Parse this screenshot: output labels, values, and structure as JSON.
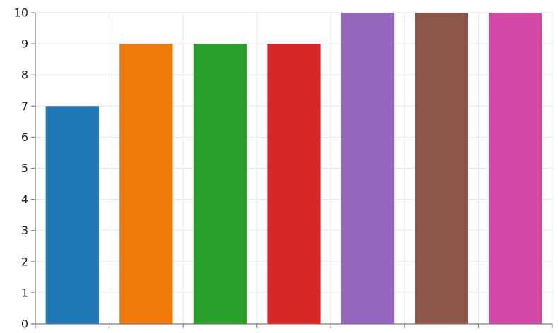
{
  "chart_data": {
    "type": "bar",
    "categories": [
      "",
      "",
      "",
      "",
      "",
      "",
      ""
    ],
    "values": [
      7,
      9,
      9,
      9,
      10,
      10,
      10
    ],
    "title": "",
    "xlabel": "",
    "ylabel": "",
    "ylim": [
      0,
      10
    ],
    "yticks": [
      0,
      1,
      2,
      3,
      4,
      5,
      6,
      7,
      8,
      9,
      10
    ],
    "ytick_labels": [
      "0",
      "1",
      "2",
      "3",
      "4",
      "5",
      "6",
      "7",
      "8",
      "9",
      "10"
    ],
    "grid": true,
    "legend": "none",
    "colors": [
      "#1f77b4",
      "#ef7a0a",
      "#2ca02c",
      "#d62728",
      "#9467bd",
      "#8c564b",
      "#d24aa6"
    ],
    "axis_color": "#7a7a7a",
    "grid_color": "#e6e6e6"
  }
}
